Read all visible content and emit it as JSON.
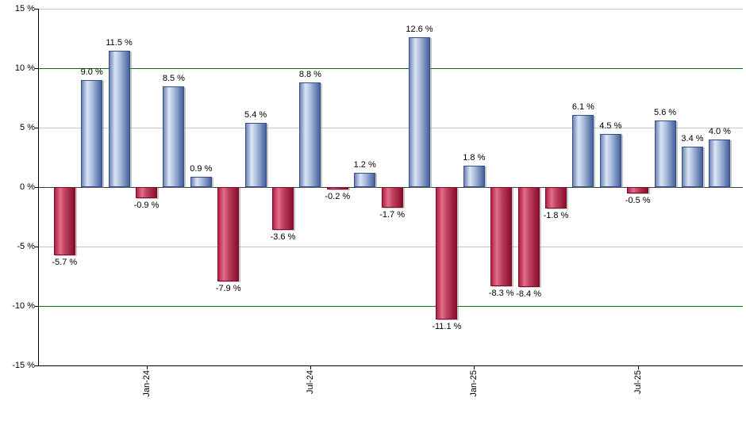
{
  "chart_data": {
    "type": "bar",
    "title": "",
    "xlabel": "",
    "ylabel": "",
    "ylim": [
      -15,
      15
    ],
    "grid": "horizontal",
    "legend": "none",
    "values": [
      -5.7,
      9.0,
      11.5,
      -0.9,
      8.5,
      0.9,
      -7.9,
      5.4,
      -3.6,
      8.8,
      -0.2,
      1.2,
      -1.7,
      12.6,
      -11.1,
      1.8,
      -8.3,
      -8.4,
      -1.8,
      6.1,
      4.5,
      -0.5,
      5.6,
      3.4,
      4.0
    ],
    "bar_labels": [
      "-5.7 %",
      "9.0 %",
      "11.5 %",
      "-0.9 %",
      "8.5 %",
      "0.9 %",
      "-7.9 %",
      "5.4 %",
      "-3.6 %",
      "8.8 %",
      "-0.2 %",
      "1.2 %",
      "-1.7 %",
      "12.6 %",
      "-11.1 %",
      "1.8 %",
      "-8.3 %",
      "-8.4 %",
      "-1.8 %",
      "6.1 %",
      "4.5 %",
      "-0.5 %",
      "5.6 %",
      "3.4 %",
      "4.0 %"
    ],
    "x_ticks": [
      {
        "index": 3,
        "label": "Jan-24"
      },
      {
        "index": 9,
        "label": "Jul-24"
      },
      {
        "index": 15,
        "label": "Jan-25"
      },
      {
        "index": 21,
        "label": "Jul-25"
      }
    ],
    "y_ticks": [
      {
        "value": 15,
        "label": "15 %",
        "line": "minor"
      },
      {
        "value": 10,
        "label": "10 %",
        "line": "major"
      },
      {
        "value": 5,
        "label": "5 %",
        "line": "minor"
      },
      {
        "value": 0,
        "label": "0 %",
        "line": "zero"
      },
      {
        "value": -5,
        "label": "-5 %",
        "line": "minor"
      },
      {
        "value": -10,
        "label": "-10 %",
        "line": "major"
      },
      {
        "value": -15,
        "label": "-15 %",
        "line": "axis"
      }
    ],
    "colors": {
      "minor_grid": "#c6c6c6",
      "major_grid": "#007a00",
      "zero_line": "#3c3c3c",
      "axis": "#000000",
      "positive_bar_border": "#33508d",
      "negative_bar_border": "#7d0b27",
      "positive_bar_gradient": [
        "#6d85b5",
        "#dce5f4",
        "#b0c2e0",
        "#44609c"
      ],
      "negative_bar_gradient": [
        "#b51d42",
        "#e0708a",
        "#c04462",
        "#8a0d2c"
      ],
      "label_text": "#000000"
    }
  }
}
